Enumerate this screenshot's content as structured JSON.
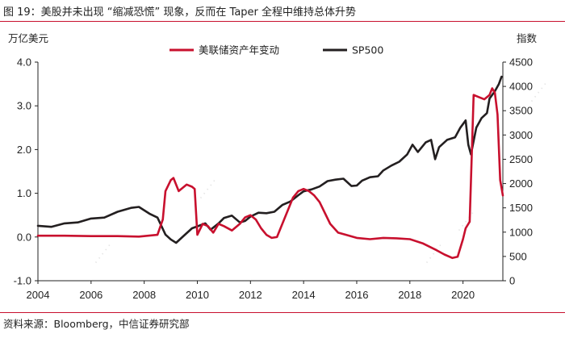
{
  "title": "图 19：美股并未出现 “缩减恐慌” 现象，反而在 Taper 全程中维持总体升势",
  "source": "资料来源：Bloomberg，中信证券研究部",
  "colors": {
    "red": "#c8102e",
    "black": "#231f20",
    "rule": "#c8102e"
  },
  "chart_data": {
    "type": "line",
    "left_unit": "万亿美元",
    "right_unit": "指数",
    "xlim": [
      2004,
      2021.5
    ],
    "x_ticks": [
      "2004",
      "2006",
      "2008",
      "2010",
      "2012",
      "2014",
      "2016",
      "2018",
      "2020"
    ],
    "ylim_left": [
      -1.0,
      4.0
    ],
    "y_ticks_left": [
      "-1.0",
      "0.0",
      "1.0",
      "2.0",
      "3.0",
      "4.0"
    ],
    "ylim_right": [
      0,
      4500
    ],
    "y_ticks_right": [
      "0",
      "500",
      "1000",
      "1500",
      "2000",
      "2500",
      "3000",
      "3500",
      "4000",
      "4500"
    ],
    "legend": [
      "美联储资产年变动",
      "SP500"
    ],
    "series": [
      {
        "name": "美联储资产年变动",
        "axis": "left",
        "color": "#c8102e",
        "x": [
          2004.0,
          2005.0,
          2006.0,
          2007.0,
          2007.8,
          2008.5,
          2008.7,
          2008.8,
          2009.0,
          2009.1,
          2009.3,
          2009.6,
          2009.8,
          2009.9,
          2010.0,
          2010.2,
          2010.4,
          2010.6,
          2010.8,
          2011.0,
          2011.3,
          2011.6,
          2011.8,
          2012.0,
          2012.2,
          2012.4,
          2012.6,
          2012.8,
          2013.0,
          2013.2,
          2013.4,
          2013.6,
          2013.8,
          2014.0,
          2014.2,
          2014.4,
          2014.6,
          2014.8,
          2015.0,
          2015.3,
          2015.6,
          2016.0,
          2016.5,
          2017.0,
          2017.5,
          2018.0,
          2018.5,
          2019.0,
          2019.3,
          2019.6,
          2019.8,
          2020.0,
          2020.1,
          2020.25,
          2020.4,
          2020.6,
          2020.8,
          2021.0,
          2021.1,
          2021.2,
          2021.3,
          2021.4,
          2021.5
        ],
        "values": [
          0.03,
          0.03,
          0.02,
          0.02,
          0.01,
          0.05,
          0.4,
          1.05,
          1.3,
          1.35,
          1.05,
          1.2,
          1.15,
          1.1,
          0.05,
          0.3,
          0.25,
          0.1,
          0.3,
          0.25,
          0.15,
          0.3,
          0.45,
          0.5,
          0.4,
          0.2,
          0.05,
          -0.02,
          0.0,
          0.3,
          0.6,
          0.9,
          1.05,
          1.1,
          1.05,
          0.95,
          0.8,
          0.55,
          0.3,
          0.1,
          0.05,
          -0.02,
          -0.05,
          -0.02,
          -0.03,
          -0.05,
          -0.15,
          -0.3,
          -0.4,
          -0.48,
          -0.45,
          -0.05,
          0.2,
          0.35,
          3.25,
          3.2,
          3.15,
          3.25,
          3.4,
          3.3,
          2.8,
          1.3,
          0.95
        ]
      },
      {
        "name": "SP500",
        "axis": "right",
        "color": "#231f20",
        "x": [
          2004.0,
          2004.5,
          2005.0,
          2005.5,
          2006.0,
          2006.5,
          2007.0,
          2007.5,
          2007.8,
          2008.2,
          2008.5,
          2008.8,
          2009.0,
          2009.2,
          2009.5,
          2009.8,
          2010.0,
          2010.3,
          2010.5,
          2010.8,
          2011.0,
          2011.3,
          2011.6,
          2011.8,
          2012.0,
          2012.3,
          2012.6,
          2012.9,
          2013.2,
          2013.5,
          2013.8,
          2014.0,
          2014.3,
          2014.6,
          2014.9,
          2015.2,
          2015.5,
          2015.8,
          2016.0,
          2016.2,
          2016.5,
          2016.8,
          2017.0,
          2017.3,
          2017.6,
          2017.9,
          2018.1,
          2018.3,
          2018.6,
          2018.8,
          2018.95,
          2019.1,
          2019.4,
          2019.7,
          2019.9,
          2020.1,
          2020.2,
          2020.3,
          2020.5,
          2020.7,
          2020.9,
          2021.0,
          2021.2,
          2021.35,
          2021.45
        ],
        "values": [
          1130,
          1110,
          1180,
          1200,
          1280,
          1300,
          1420,
          1500,
          1520,
          1380,
          1300,
          950,
          850,
          780,
          930,
          1080,
          1120,
          1180,
          1050,
          1180,
          1290,
          1340,
          1200,
          1230,
          1320,
          1400,
          1390,
          1420,
          1560,
          1630,
          1760,
          1840,
          1880,
          1940,
          2050,
          2080,
          2100,
          1950,
          1960,
          2060,
          2130,
          2150,
          2270,
          2370,
          2450,
          2600,
          2800,
          2650,
          2850,
          2900,
          2500,
          2750,
          2900,
          2950,
          3150,
          3300,
          2800,
          2600,
          3150,
          3350,
          3450,
          3750,
          3900,
          4050,
          4200
        ]
      }
    ]
  }
}
